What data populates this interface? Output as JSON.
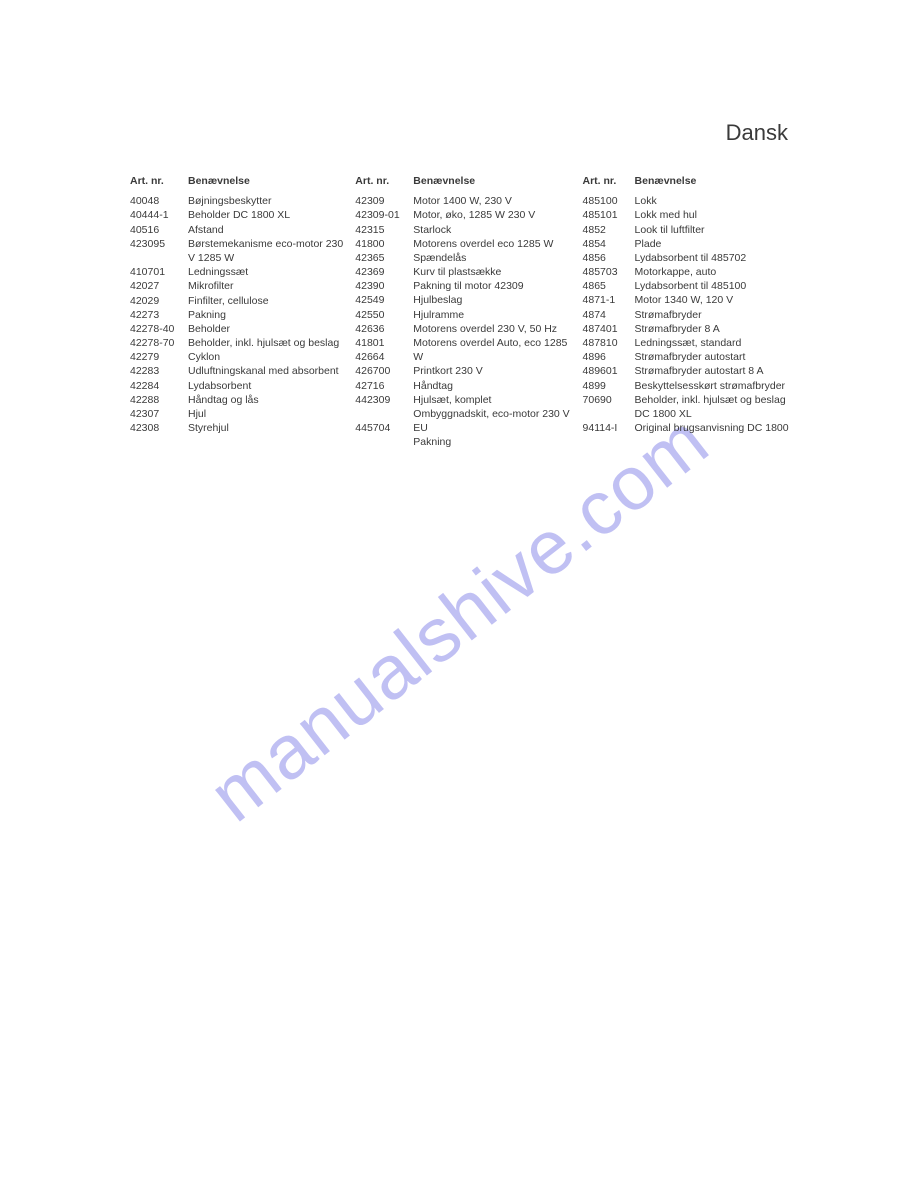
{
  "language_title": "Dansk",
  "watermark_text": "manualshive.com",
  "headers": {
    "artnr": "Art. nr.",
    "name": "Benævnelse"
  },
  "col1": [
    {
      "art": "40048",
      "name": "Bøjningsbeskytter"
    },
    {
      "art": "40444-1",
      "name": "Beholder DC 1800 XL"
    },
    {
      "art": "40516",
      "name": "Afstand"
    },
    {
      "art": "423095",
      "name": "Børstemekanisme eco-motor 230 V 1285 W"
    },
    {
      "art": "410701",
      "name": "Ledningssæt"
    },
    {
      "art": "42027",
      "name": "Mikrofilter"
    },
    {
      "art": "42029",
      "name": "Finfilter, cellulose"
    },
    {
      "art": "42273",
      "name": "Pakning"
    },
    {
      "art": "42278-40",
      "name": "Beholder"
    },
    {
      "art": "42278-70",
      "name": "Beholder, inkl. hjulsæt og beslag"
    },
    {
      "art": "42279",
      "name": "Cyklon"
    },
    {
      "art": "42283",
      "name": "Udluftningskanal med absorbent"
    },
    {
      "art": "42284",
      "name": "Lydabsorbent"
    },
    {
      "art": "42288",
      "name": "Håndtag og lås"
    },
    {
      "art": "42307",
      "name": "Hjul"
    },
    {
      "art": "42308",
      "name": "Styrehjul"
    }
  ],
  "col2": [
    {
      "art": "42309",
      "name": "Motor 1400 W, 230 V"
    },
    {
      "art": "42309-01",
      "name": "Motor, øko, 1285 W 230 V"
    },
    {
      "art": "42315",
      "name": "Starlock"
    },
    {
      "art": "41800",
      "name": "Motorens overdel eco 1285 W"
    },
    {
      "art": "42365",
      "name": "Spændelås"
    },
    {
      "art": "42369",
      "name": "Kurv til plastsække"
    },
    {
      "art": "42390",
      "name": "Pakning til motor 42309"
    },
    {
      "art": "42549",
      "name": "Hjulbeslag"
    },
    {
      "art": "42550",
      "name": "Hjulramme"
    },
    {
      "art": "42636",
      "name": "Motorens overdel 230 V, 50 Hz"
    },
    {
      "art": "41801",
      "name": "Motorens overdel Auto, eco 1285 W"
    },
    {
      "art": "42664",
      "name": "Printkort 230 V"
    },
    {
      "art": "426700",
      "name": "Håndtag"
    },
    {
      "art": "42716",
      "name": "Hjulsæt, komplet"
    },
    {
      "art": "442309",
      "name": "Ombyggnadskit, eco-motor 230 V EU"
    },
    {
      "art": "445704",
      "name": "Pakning"
    }
  ],
  "col3": [
    {
      "art": "485100",
      "name": "Lokk"
    },
    {
      "art": "485101",
      "name": "Lokk med hul"
    },
    {
      "art": "4852",
      "name": "Look til luftfilter"
    },
    {
      "art": "4854",
      "name": "Plade"
    },
    {
      "art": "4856",
      "name": "Lydabsorbent til 485702"
    },
    {
      "art": "485703",
      "name": "Motorkappe, auto"
    },
    {
      "art": "4865",
      "name": "Lydabsorbent til 485100"
    },
    {
      "art": "4871-1",
      "name": "Motor 1340 W, 120 V"
    },
    {
      "art": "4874",
      "name": "Strømafbryder"
    },
    {
      "art": "487401",
      "name": "Strømafbryder 8 A"
    },
    {
      "art": "487810",
      "name": "Ledningssæt, standard"
    },
    {
      "art": "4896",
      "name": "Strømafbryder autostart"
    },
    {
      "art": "489601",
      "name": "Strømafbryder autostart 8 A"
    },
    {
      "art": "4899",
      "name": "Beskyttelsesskørt strømafbryder"
    },
    {
      "art": "70690",
      "name": "Beholder, inkl. hjulsæt og beslag DC 1800 XL"
    },
    {
      "art": "94114-I",
      "name": "Original brugsanvisning DC 1800"
    }
  ]
}
